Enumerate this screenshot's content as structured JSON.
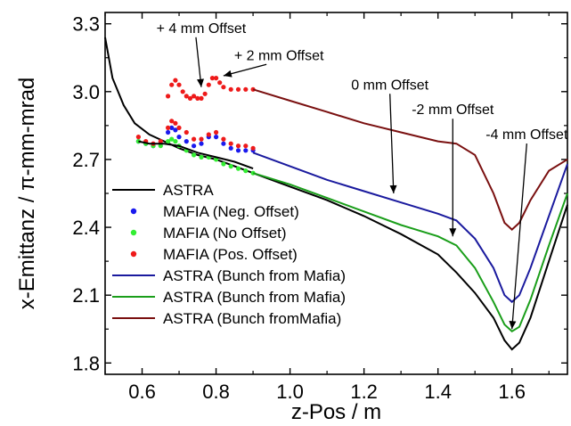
{
  "chart_data": {
    "type": "line",
    "xlabel": "z-Pos / m",
    "ylabel": "x-Emittanz / π-mm-mrad",
    "xlim": [
      0.5,
      1.75
    ],
    "ylim": [
      1.75,
      3.35
    ],
    "xticks": [
      0.6,
      0.8,
      1.0,
      1.2,
      1.4,
      1.6
    ],
    "xtick_labels": [
      "0.6",
      "0.8",
      "1.0",
      "1.2",
      "1.4",
      "1.6"
    ],
    "yticks": [
      1.8,
      2.1,
      2.4,
      2.7,
      3.0,
      3.3
    ],
    "ytick_labels": [
      "1.8",
      "2.1",
      "2.4",
      "2.7",
      "3.0",
      "3.3"
    ],
    "grid": false,
    "legend_position": "bottom-left",
    "series": [
      {
        "name": "ASTRA",
        "kind": "line",
        "color": "#000000",
        "x": [
          0.5,
          0.52,
          0.55,
          0.58,
          0.62,
          0.66,
          0.7,
          0.75,
          0.8,
          0.9,
          1.0,
          1.1,
          1.2,
          1.3,
          1.4,
          1.45,
          1.5,
          1.55,
          1.58,
          1.6,
          1.62,
          1.65,
          1.7,
          1.75
        ],
        "y": [
          3.24,
          3.06,
          2.94,
          2.86,
          2.81,
          2.78,
          2.75,
          2.72,
          2.7,
          2.64,
          2.58,
          2.52,
          2.45,
          2.37,
          2.28,
          2.2,
          2.11,
          2.0,
          1.9,
          1.86,
          1.89,
          2.0,
          2.25,
          2.5
        ]
      },
      {
        "name": "MAFIA  (Neg. Offset)",
        "kind": "scatter",
        "color": "#1a1aee",
        "x": [
          0.59,
          0.61,
          0.63,
          0.65,
          0.67,
          0.68,
          0.69,
          0.7,
          0.72,
          0.74,
          0.76,
          0.78,
          0.8,
          0.82,
          0.84,
          0.86,
          0.88,
          0.9
        ],
        "y": [
          2.78,
          2.77,
          2.76,
          2.77,
          2.82,
          2.84,
          2.83,
          2.8,
          2.78,
          2.76,
          2.77,
          2.8,
          2.8,
          2.77,
          2.75,
          2.74,
          2.74,
          2.74
        ]
      },
      {
        "name": "MAFIA  (No Offset)",
        "kind": "scatter",
        "color": "#33ee33",
        "x": [
          0.59,
          0.61,
          0.63,
          0.65,
          0.67,
          0.68,
          0.69,
          0.7,
          0.72,
          0.74,
          0.76,
          0.78,
          0.8,
          0.82,
          0.84,
          0.86,
          0.88,
          0.9
        ],
        "y": [
          2.78,
          2.77,
          2.76,
          2.76,
          2.78,
          2.79,
          2.78,
          2.76,
          2.74,
          2.72,
          2.71,
          2.71,
          2.7,
          2.68,
          2.67,
          2.66,
          2.65,
          2.64
        ]
      },
      {
        "name": "MAFIA  (Pos. Offset)",
        "kind": "scatter",
        "color": "#ee1a1a",
        "x": [
          0.59,
          0.61,
          0.63,
          0.65,
          0.67,
          0.68,
          0.69,
          0.7,
          0.72,
          0.74,
          0.76,
          0.78,
          0.8,
          0.82,
          0.84,
          0.86,
          0.88,
          0.9
        ],
        "y": [
          2.8,
          2.78,
          2.77,
          2.78,
          2.84,
          2.87,
          2.86,
          2.84,
          2.82,
          2.79,
          2.79,
          2.81,
          2.82,
          2.79,
          2.77,
          2.76,
          2.76,
          2.75
        ]
      },
      {
        "name": "MAFIA  (Pos. Offset)",
        "kind": "scatter",
        "color": "#ee1a1a",
        "x": [
          0.67,
          0.68,
          0.69,
          0.7,
          0.71,
          0.72,
          0.73,
          0.74,
          0.75,
          0.76,
          0.77,
          0.78,
          0.79,
          0.8,
          0.81,
          0.82,
          0.84,
          0.86,
          0.88,
          0.9
        ],
        "y": [
          2.98,
          3.03,
          3.05,
          3.03,
          3.0,
          2.98,
          2.97,
          2.98,
          2.97,
          2.97,
          2.99,
          3.03,
          3.06,
          3.06,
          3.04,
          3.02,
          3.01,
          3.01,
          3.01,
          3.01
        ]
      },
      {
        "name": "ASTRA (Bunch from Mafia)",
        "kind": "line",
        "color": "#1a1a9e",
        "x": [
          0.9,
          1.0,
          1.1,
          1.2,
          1.3,
          1.4,
          1.45,
          1.5,
          1.55,
          1.58,
          1.6,
          1.62,
          1.65,
          1.7,
          1.75
        ],
        "y": [
          2.73,
          2.67,
          2.61,
          2.56,
          2.51,
          2.46,
          2.43,
          2.35,
          2.22,
          2.1,
          2.07,
          2.1,
          2.22,
          2.45,
          2.68
        ]
      },
      {
        "name": "ASTRA (Bunch from Mafia)",
        "kind": "line",
        "color": "#1a9e1a",
        "x": [
          0.9,
          1.0,
          1.1,
          1.2,
          1.3,
          1.4,
          1.45,
          1.5,
          1.55,
          1.58,
          1.6,
          1.62,
          1.65,
          1.7,
          1.75
        ],
        "y": [
          2.64,
          2.59,
          2.53,
          2.47,
          2.41,
          2.36,
          2.32,
          2.22,
          2.07,
          1.97,
          1.94,
          1.96,
          2.08,
          2.32,
          2.55
        ]
      },
      {
        "name": "ASTRA (Bunch fromMafia)",
        "kind": "line",
        "color": "#7a1010",
        "x": [
          0.9,
          1.0,
          1.1,
          1.2,
          1.3,
          1.4,
          1.45,
          1.5,
          1.55,
          1.58,
          1.6,
          1.62,
          1.65,
          1.7,
          1.75
        ],
        "y": [
          3.01,
          2.96,
          2.91,
          2.86,
          2.82,
          2.78,
          2.77,
          2.72,
          2.55,
          2.42,
          2.39,
          2.42,
          2.52,
          2.65,
          2.7
        ]
      },
      {
        "name": "",
        "kind": "line",
        "color": "#000000",
        "x": [
          0.59,
          0.62,
          0.66,
          0.7,
          0.75,
          0.8,
          0.85,
          0.9
        ],
        "y": [
          2.78,
          2.77,
          2.77,
          2.76,
          2.73,
          2.71,
          2.69,
          2.66
        ]
      }
    ],
    "annotations": [
      {
        "text": "+ 4 mm Offset",
        "x": 0.76,
        "y": 3.26
      },
      {
        "text": "+ 2 mm Offset",
        "x": 0.97,
        "y": 3.14
      },
      {
        "text": "0 mm Offset",
        "x": 1.27,
        "y": 3.01
      },
      {
        "text": "-2 mm Offset",
        "x": 1.44,
        "y": 2.9
      },
      {
        "text": "-4 mm Offset",
        "x": 1.64,
        "y": 2.79
      }
    ]
  }
}
